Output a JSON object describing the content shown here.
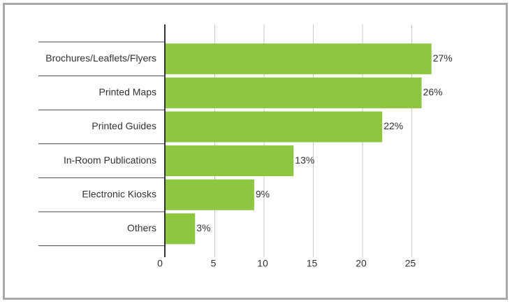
{
  "chart_data": {
    "type": "bar",
    "orientation": "horizontal",
    "categories": [
      "Brochures/Leaflets/Flyers",
      "Printed Maps",
      "Printed Guides",
      "In-Room Publications",
      "Electronic Kiosks",
      "Others"
    ],
    "values": [
      27,
      26,
      22,
      13,
      9,
      3
    ],
    "value_labels": [
      "27%",
      "26%",
      "22%",
      "13%",
      "9%",
      "3%"
    ],
    "x_ticks": [
      0,
      5,
      10,
      15,
      20,
      25
    ],
    "xlim": [
      0,
      27
    ],
    "title": "",
    "xlabel": "",
    "ylabel": "",
    "grid": true,
    "legend": "none",
    "bar_color": "#8dc63f",
    "frame_color": "#a9a9a9"
  }
}
